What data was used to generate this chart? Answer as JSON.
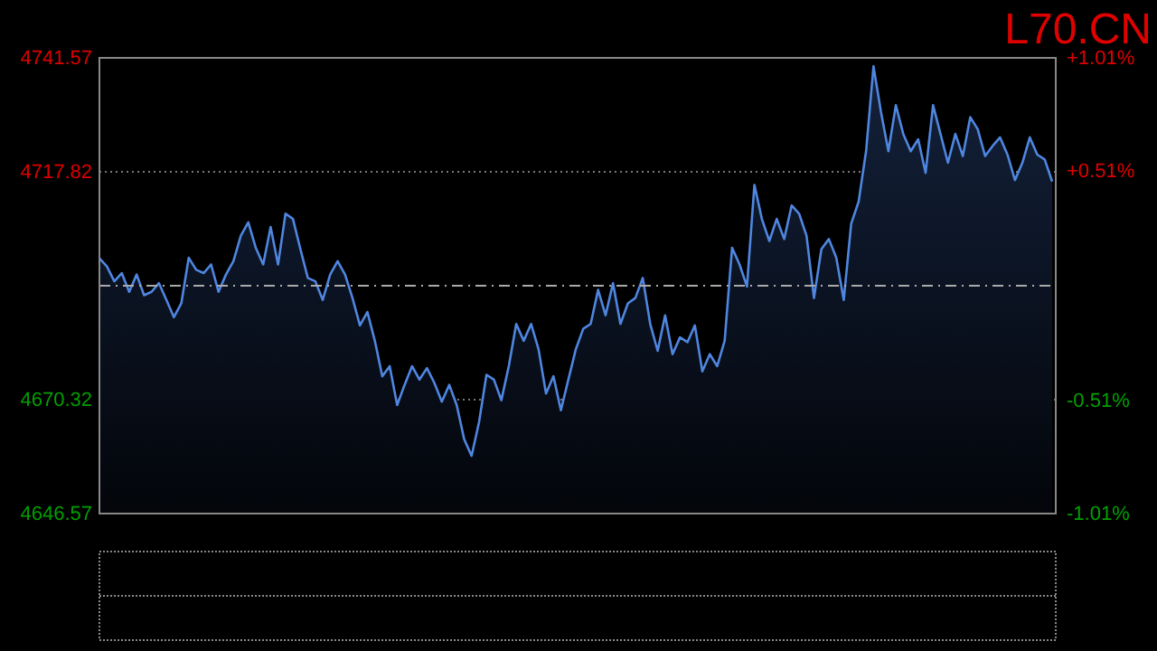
{
  "chart_data": {
    "type": "area",
    "title": "L70.CN",
    "categories": [
      null,
      null,
      null,
      null,
      null,
      null,
      null,
      null,
      null,
      null,
      null,
      null,
      null,
      null,
      null,
      null,
      null,
      null,
      null,
      null,
      null,
      null,
      null,
      null,
      null,
      null,
      null,
      null,
      null,
      null,
      null,
      null,
      null,
      null,
      null,
      null,
      null,
      null,
      null,
      null,
      null,
      null,
      null,
      null,
      null,
      null,
      null,
      null,
      null,
      null,
      null,
      null,
      null,
      null,
      null,
      null,
      null,
      null,
      null,
      null,
      null,
      null,
      null,
      null,
      null,
      null,
      null,
      null,
      null,
      null,
      null,
      null,
      null,
      null,
      null,
      null,
      null,
      null,
      null,
      null,
      null,
      null,
      null,
      null,
      null,
      null,
      null,
      null,
      null,
      null,
      null,
      null,
      null,
      null,
      null,
      null,
      null,
      null,
      null,
      null,
      null,
      null,
      null,
      null,
      null,
      null,
      null,
      null,
      null,
      null,
      null,
      null,
      null,
      null,
      null,
      null,
      null,
      null,
      null,
      null,
      null,
      null,
      null,
      null,
      null,
      null,
      null,
      null,
      null
    ],
    "series": [
      {
        "color": "#4f86e0",
        "values": [
          4699.8,
          4698.1,
          4695.0,
          4696.7,
          4692.8,
          4696.4,
          4692.1,
          4692.8,
          4694.6,
          4691.1,
          4687.5,
          4690.4,
          4699.9,
          4697.4,
          4696.7,
          4698.5,
          4692.8,
          4696.4,
          4699.2,
          4704.5,
          4707.3,
          4702.0,
          4698.5,
          4706.3,
          4698.5,
          4709.1,
          4708.0,
          4701.7,
          4695.7,
          4695.0,
          4691.1,
          4696.4,
          4699.2,
          4696.4,
          4691.5,
          4685.8,
          4688.6,
          4682.6,
          4675.2,
          4677.3,
          4669.2,
          4673.4,
          4677.3,
          4674.5,
          4676.9,
          4673.8,
          4669.9,
          4673.4,
          4669.2,
          4662.1,
          4658.6,
          4665.6,
          4675.5,
          4674.5,
          4670.2,
          4677.3,
          4686.1,
          4682.6,
          4686.1,
          4680.8,
          4671.6,
          4675.2,
          4668.1,
          4674.5,
          4680.8,
          4685.1,
          4686.1,
          4693.2,
          4687.9,
          4694.6,
          4686.1,
          4690.4,
          4691.5,
          4695.7,
          4686.1,
          4680.5,
          4687.9,
          4679.8,
          4683.3,
          4682.3,
          4685.8,
          4676.2,
          4679.8,
          4677.3,
          4682.6,
          4702.0,
          4698.5,
          4693.9,
          4715.1,
          4708.0,
          4703.4,
          4708.0,
          4703.8,
          4710.8,
          4709.1,
          4704.5,
          4691.5,
          4701.7,
          4703.8,
          4699.9,
          4691.1,
          4707.0,
          4711.6,
          4722.1,
          4739.8,
          4730.3,
          4722.1,
          4731.7,
          4725.7,
          4722.1,
          4724.6,
          4717.6,
          4731.7,
          4725.7,
          4719.7,
          4725.7,
          4721.1,
          4729.2,
          4726.7,
          4721.1,
          4723.2,
          4725.0,
          4721.4,
          4716.1,
          4719.7,
          4725.0,
          4721.4,
          4720.4,
          4715.8
        ]
      }
    ],
    "ylim": [
      4646.57,
      4741.57
    ],
    "yticks": [
      4646.57,
      4670.32,
      4717.82,
      4741.57
    ],
    "y2lim": [
      -1.01,
      1.01
    ],
    "y2ticks": [
      {
        "value": -1.01,
        "label": "-1.01%"
      },
      {
        "value": -0.51,
        "label": "-0.51%"
      },
      {
        "value": 0.51,
        "label": "+0.51%"
      },
      {
        "value": 1.01,
        "label": "+1.01%"
      }
    ],
    "ref_lines": [
      {
        "axis": "y",
        "value": 4694.07,
        "color": "#aaaaaa",
        "line_style": "dashed"
      }
    ],
    "grid": "y"
  }
}
